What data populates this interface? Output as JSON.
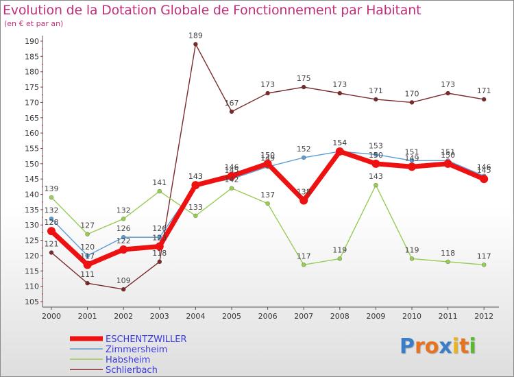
{
  "header": {
    "title": "Evolution de la Dotation Globale de Fonctionnement par Habitant",
    "subtitle": "(en € et par an)"
  },
  "logo": {
    "text": "Proxiti",
    "letters": [
      "P",
      "r",
      "o",
      "x",
      "i",
      "t",
      "i"
    ],
    "colors": [
      "#3a7dc8",
      "#e8731e",
      "#e8731e",
      "#3a7dc8",
      "#e8b51e",
      "#e8731e",
      "#5cb82e"
    ]
  },
  "chart_data": {
    "type": "line",
    "title": "Evolution de la Dotation Globale de Fonctionnement par Habitant",
    "subtitle": "(en € et par an)",
    "xlabel": "",
    "ylabel": "",
    "x": [
      "2000",
      "2001",
      "2002",
      "2003",
      "2004",
      "2005",
      "2006",
      "2007",
      "2008",
      "2009",
      "2010",
      "2011",
      "2012"
    ],
    "yticks": [
      105,
      110,
      115,
      120,
      125,
      130,
      135,
      140,
      145,
      150,
      155,
      160,
      165,
      170,
      175,
      180,
      185,
      190
    ],
    "ylim": [
      104,
      192
    ],
    "grid": false,
    "legend_position": "bottom-left",
    "series": [
      {
        "name": "Schlierbach",
        "color": "#7a2a2a",
        "width": "thin",
        "values": [
          121,
          111,
          109,
          118,
          189,
          167,
          173,
          175,
          173,
          171,
          170,
          173,
          171
        ],
        "labels": [
          "121",
          "111",
          "109",
          "118",
          "189",
          "167",
          "173",
          "175",
          "173",
          "171",
          "170",
          "173",
          "171"
        ]
      },
      {
        "name": "Habsheim",
        "color": "#99cc55",
        "width": "thin",
        "values": [
          139,
          127,
          132,
          141,
          133,
          142,
          137,
          117,
          119,
          143,
          119,
          118,
          117
        ],
        "labels": [
          "139",
          "127",
          "132",
          "141",
          "133",
          "142",
          "137",
          "117",
          "119",
          "143",
          "119",
          "118",
          "117"
        ]
      },
      {
        "name": "Zimmersheim",
        "color": "#5b9bd5",
        "width": "thin",
        "values": [
          132,
          120,
          126,
          126,
          143,
          145,
          149,
          152,
          154,
          153,
          151,
          151,
          146
        ],
        "labels": [
          "132",
          "120",
          "126",
          "126",
          "143",
          "145",
          "149",
          "152",
          "154",
          "153",
          "151",
          "151",
          "146"
        ]
      },
      {
        "name": "ESCHENTZWILLER",
        "color": "#ee1111",
        "width": "thick",
        "values": [
          128,
          117,
          122,
          123,
          143,
          146,
          150,
          138,
          154,
          150,
          149,
          150,
          145
        ],
        "labels": [
          "128",
          "117",
          "122",
          "123",
          "143",
          "146",
          "150",
          "138",
          "154",
          "150",
          "149",
          "150",
          "145"
        ]
      }
    ],
    "legend": [
      {
        "name": "ESCHENTZWILLER",
        "color": "#ee1111",
        "text_color": "#3a3ae0"
      },
      {
        "name": "Zimmersheim",
        "color": "#5b9bd5",
        "text_color": "#3a3ae0"
      },
      {
        "name": "Habsheim",
        "color": "#99cc55",
        "text_color": "#3a3ae0"
      },
      {
        "name": "Schlierbach",
        "color": "#7a2a2a",
        "text_color": "#3a3ae0"
      }
    ]
  }
}
